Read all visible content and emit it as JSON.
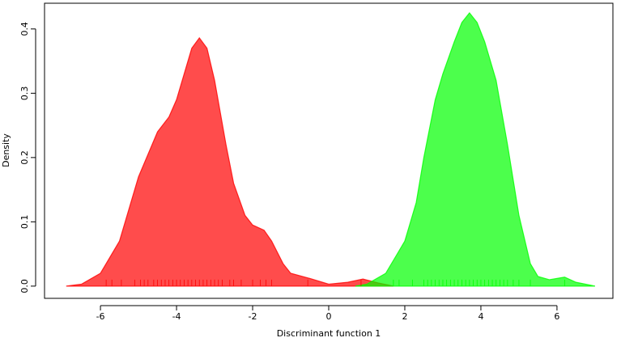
{
  "chart_data": {
    "type": "density",
    "xlabel": "Discriminant function 1",
    "ylabel": "Density",
    "xlim": [
      -7.47,
      7.47
    ],
    "ylim": [
      -0.019,
      0.44
    ],
    "xticks": [
      -6,
      -4,
      -2,
      0,
      2,
      4,
      6
    ],
    "yticks": [
      {
        "value": 0,
        "label": "0.0"
      },
      0.1,
      0.2,
      0.3,
      0.4
    ],
    "series": [
      {
        "color": "#ff0000",
        "x": [
          -6.9,
          -6.5,
          -6.0,
          -5.5,
          -5.0,
          -4.5,
          -4.2,
          -4.0,
          -3.6,
          -3.4,
          -3.2,
          -3.0,
          -2.7,
          -2.5,
          -2.2,
          -2.0,
          -1.7,
          -1.5,
          -1.2,
          -1.0,
          -0.5,
          0.0,
          0.5,
          0.9,
          1.3,
          1.7
        ],
        "values": [
          0.0,
          0.003,
          0.02,
          0.07,
          0.17,
          0.24,
          0.263,
          0.29,
          0.37,
          0.386,
          0.37,
          0.32,
          0.22,
          0.16,
          0.11,
          0.095,
          0.087,
          0.07,
          0.035,
          0.02,
          0.012,
          0.003,
          0.006,
          0.011,
          0.005,
          0.0
        ],
        "rug": [
          -5.85,
          -5.7,
          -5.45,
          -5.1,
          -4.95,
          -4.85,
          -4.75,
          -4.6,
          -4.5,
          -4.4,
          -4.3,
          -4.2,
          -4.1,
          -4.0,
          -3.9,
          -3.8,
          -3.7,
          -3.6,
          -3.5,
          -3.4,
          -3.3,
          -3.2,
          -3.1,
          -3.0,
          -2.9,
          -2.8,
          -2.6,
          -2.5,
          -2.3,
          -2.0,
          -1.8,
          -1.65,
          -1.5,
          -0.55,
          0.85
        ]
      },
      {
        "color": "#00ff00",
        "x": [
          0.7,
          1.0,
          1.5,
          1.8,
          2.0,
          2.3,
          2.5,
          2.8,
          3.0,
          3.3,
          3.5,
          3.7,
          3.9,
          4.1,
          4.4,
          4.7,
          5.0,
          5.3,
          5.5,
          5.8,
          6.2,
          6.5,
          7.0
        ],
        "values": [
          0.0,
          0.003,
          0.02,
          0.05,
          0.07,
          0.13,
          0.2,
          0.29,
          0.33,
          0.38,
          0.41,
          0.425,
          0.41,
          0.38,
          0.32,
          0.22,
          0.11,
          0.035,
          0.015,
          0.01,
          0.014,
          0.006,
          0.0
        ],
        "rug": [
          1.7,
          1.85,
          2.2,
          2.5,
          2.6,
          2.7,
          2.8,
          2.9,
          3.0,
          3.1,
          3.2,
          3.3,
          3.4,
          3.5,
          3.6,
          3.7,
          3.8,
          3.9,
          4.0,
          4.1,
          4.2,
          4.3,
          4.4,
          4.5,
          4.6,
          4.7,
          4.85,
          5.0,
          5.3,
          6.2
        ]
      }
    ]
  }
}
